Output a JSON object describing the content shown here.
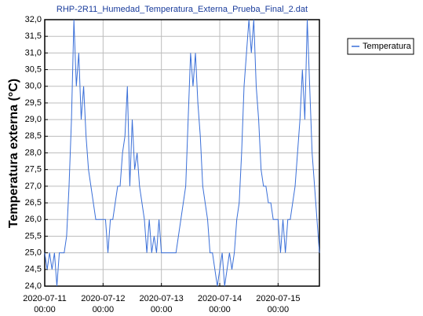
{
  "chart_data": {
    "type": "line",
    "title": "RHP-2R11_Humedad_Temperatura_Externa_Prueba_Final_2.dat",
    "y_label": "Temperatura externa (°C)",
    "legend_position": "top-right",
    "grid": true,
    "x": [
      "2020-07-11 00:00",
      "2020-07-11 01:00",
      "2020-07-11 02:00",
      "2020-07-11 03:00",
      "2020-07-11 04:00",
      "2020-07-11 05:00",
      "2020-07-11 06:00",
      "2020-07-11 07:00",
      "2020-07-11 08:00",
      "2020-07-11 09:00",
      "2020-07-11 10:00",
      "2020-07-11 11:00",
      "2020-07-11 12:00",
      "2020-07-11 13:00",
      "2020-07-11 14:00",
      "2020-07-11 15:00",
      "2020-07-11 16:00",
      "2020-07-11 17:00",
      "2020-07-11 18:00",
      "2020-07-11 19:00",
      "2020-07-11 20:00",
      "2020-07-11 21:00",
      "2020-07-11 22:00",
      "2020-07-11 23:00",
      "2020-07-12 00:00",
      "2020-07-12 01:00",
      "2020-07-12 02:00",
      "2020-07-12 03:00",
      "2020-07-12 04:00",
      "2020-07-12 05:00",
      "2020-07-12 06:00",
      "2020-07-12 07:00",
      "2020-07-12 08:00",
      "2020-07-12 09:00",
      "2020-07-12 10:00",
      "2020-07-12 11:00",
      "2020-07-12 12:00",
      "2020-07-12 13:00",
      "2020-07-12 14:00",
      "2020-07-12 15:00",
      "2020-07-12 16:00",
      "2020-07-12 17:00",
      "2020-07-12 18:00",
      "2020-07-12 19:00",
      "2020-07-12 20:00",
      "2020-07-12 21:00",
      "2020-07-12 22:00",
      "2020-07-12 23:00",
      "2020-07-13 00:00",
      "2020-07-13 01:00",
      "2020-07-13 02:00",
      "2020-07-13 03:00",
      "2020-07-13 04:00",
      "2020-07-13 05:00",
      "2020-07-13 06:00",
      "2020-07-13 07:00",
      "2020-07-13 08:00",
      "2020-07-13 09:00",
      "2020-07-13 10:00",
      "2020-07-13 11:00",
      "2020-07-13 12:00",
      "2020-07-13 13:00",
      "2020-07-13 14:00",
      "2020-07-13 15:00",
      "2020-07-13 16:00",
      "2020-07-13 17:00",
      "2020-07-13 18:00",
      "2020-07-13 19:00",
      "2020-07-13 20:00",
      "2020-07-13 21:00",
      "2020-07-13 22:00",
      "2020-07-13 23:00",
      "2020-07-14 00:00",
      "2020-07-14 01:00",
      "2020-07-14 02:00",
      "2020-07-14 03:00",
      "2020-07-14 04:00",
      "2020-07-14 05:00",
      "2020-07-14 06:00",
      "2020-07-14 07:00",
      "2020-07-14 08:00",
      "2020-07-14 09:00",
      "2020-07-14 10:00",
      "2020-07-14 11:00",
      "2020-07-14 12:00",
      "2020-07-14 13:00",
      "2020-07-14 14:00",
      "2020-07-14 15:00",
      "2020-07-14 16:00",
      "2020-07-14 17:00",
      "2020-07-14 18:00",
      "2020-07-14 19:00",
      "2020-07-14 20:00",
      "2020-07-14 21:00",
      "2020-07-14 22:00",
      "2020-07-14 23:00",
      "2020-07-15 00:00",
      "2020-07-15 01:00",
      "2020-07-15 02:00",
      "2020-07-15 03:00",
      "2020-07-15 04:00",
      "2020-07-15 05:00",
      "2020-07-15 06:00",
      "2020-07-15 07:00",
      "2020-07-15 08:00",
      "2020-07-15 09:00",
      "2020-07-15 10:00",
      "2020-07-15 11:00",
      "2020-07-15 12:00",
      "2020-07-15 13:00",
      "2020-07-15 14:00",
      "2020-07-15 15:00",
      "2020-07-15 16:00",
      "2020-07-15 17:00"
    ],
    "series": [
      {
        "name": "Temperatura",
        "color": "#3a6fd8",
        "values": [
          25,
          24.5,
          25,
          24.5,
          25,
          24,
          25,
          25,
          25,
          25.5,
          27,
          29,
          32,
          30,
          31,
          29,
          30,
          28.5,
          27.5,
          27,
          26.5,
          26,
          26,
          26,
          26,
          26,
          25,
          26,
          26,
          26.5,
          27,
          27,
          28,
          28.5,
          30,
          27,
          29,
          27.5,
          28,
          27,
          26.5,
          26,
          25,
          26,
          25,
          25.5,
          25,
          26,
          25,
          25,
          25,
          25,
          25,
          25,
          25,
          25.5,
          26,
          26.5,
          27,
          29,
          31,
          30,
          31,
          29.5,
          28.5,
          27,
          26.5,
          26,
          25,
          25,
          24.5,
          24,
          24.5,
          25,
          24,
          24.5,
          25,
          24.5,
          25,
          26,
          26.5,
          28,
          30,
          31,
          32,
          31,
          32,
          30,
          29,
          27.5,
          27,
          27,
          26.5,
          26.5,
          26,
          26,
          26,
          25,
          26,
          25,
          26,
          26,
          26.5,
          27,
          28,
          29,
          30.5,
          29,
          32,
          30,
          28,
          27,
          26,
          25
        ]
      }
    ],
    "xlim": [
      "2020-07-11 00:00",
      "2020-07-15 17:00"
    ],
    "xticks": [
      {
        "value": "2020-07-11 00:00",
        "label": [
          "2020-07-11",
          "00:00"
        ]
      },
      {
        "value": "2020-07-12 00:00",
        "label": [
          "2020-07-12",
          "00:00"
        ]
      },
      {
        "value": "2020-07-13 00:00",
        "label": [
          "2020-07-13",
          "00:00"
        ]
      },
      {
        "value": "2020-07-14 00:00",
        "label": [
          "2020-07-14",
          "00:00"
        ]
      },
      {
        "value": "2020-07-15 00:00",
        "label": [
          "2020-07-15",
          "00:00"
        ]
      }
    ],
    "ylim": [
      24,
      32
    ],
    "yticks": [
      {
        "value": 24,
        "label": "24,0"
      },
      {
        "value": 24.5,
        "label": "24,5"
      },
      {
        "value": 25,
        "label": "25,0"
      },
      {
        "value": 25.5,
        "label": "25,5"
      },
      {
        "value": 26,
        "label": "26,0"
      },
      {
        "value": 26.5,
        "label": "26,5"
      },
      {
        "value": 27,
        "label": "27,0"
      },
      {
        "value": 27.5,
        "label": "27,5"
      },
      {
        "value": 28,
        "label": "28,0"
      },
      {
        "value": 28.5,
        "label": "28,5"
      },
      {
        "value": 29,
        "label": "29,0"
      },
      {
        "value": 29.5,
        "label": "29,5"
      },
      {
        "value": 30,
        "label": "30,0"
      },
      {
        "value": 30.5,
        "label": "30,5"
      },
      {
        "value": 31,
        "label": "31,0"
      },
      {
        "value": 31.5,
        "label": "31,5"
      },
      {
        "value": 32,
        "label": "32,0"
      }
    ]
  }
}
